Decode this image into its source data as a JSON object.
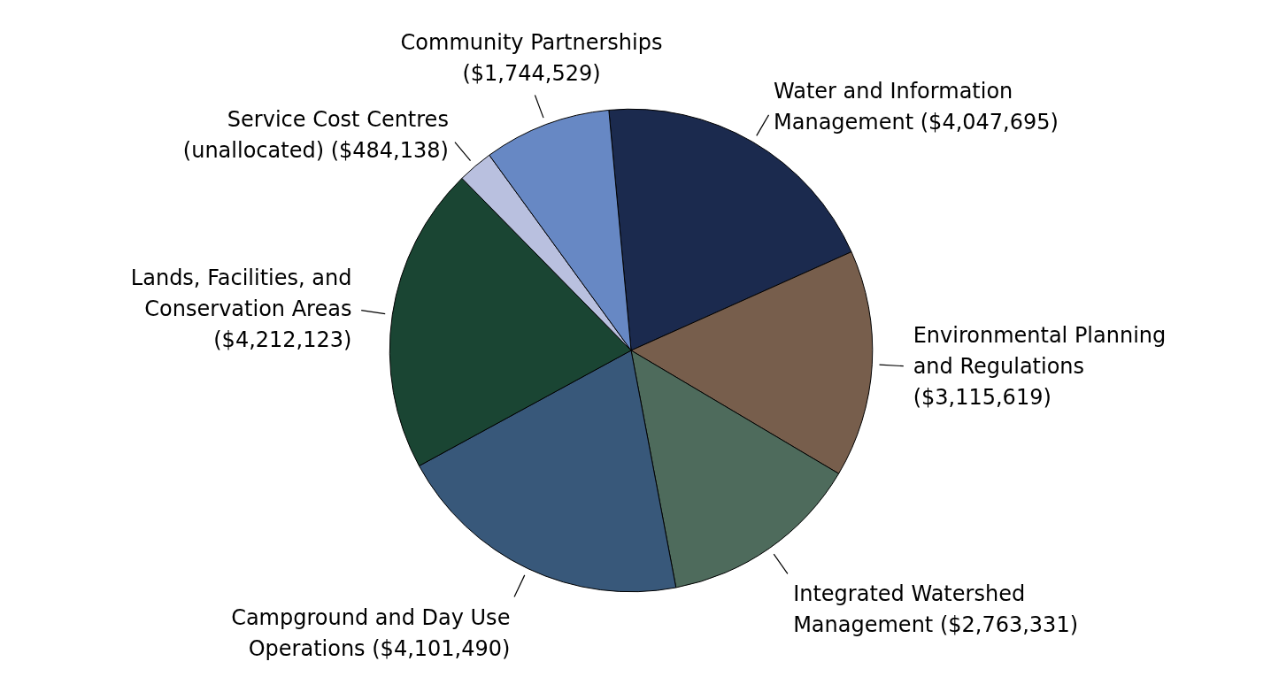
{
  "chart_data": {
    "type": "pie",
    "categories": [
      "Water and Information Management",
      "Environmental Planning and Regulations",
      "Integrated Watershed Management",
      "Campground and Day Use Operations",
      "Lands, Facilities, and Conservation Areas",
      "Service Cost Centres (unallocated)",
      "Community Partnerships"
    ],
    "values": [
      4047695,
      3115619,
      2763331,
      4101490,
      4212123,
      484138,
      1744529
    ],
    "value_labels": [
      "($4,047,695)",
      "($3,115,619)",
      "($2,763,331)",
      "($4,101,490)",
      "($4,212,123)",
      "($484,138)",
      "($1,744,529)"
    ],
    "colors": [
      "#1b2a4e",
      "#775e4c",
      "#4e6b5c",
      "#38587a",
      "#1a4533",
      "#b9c0df",
      "#6788c4"
    ],
    "legend": false
  }
}
